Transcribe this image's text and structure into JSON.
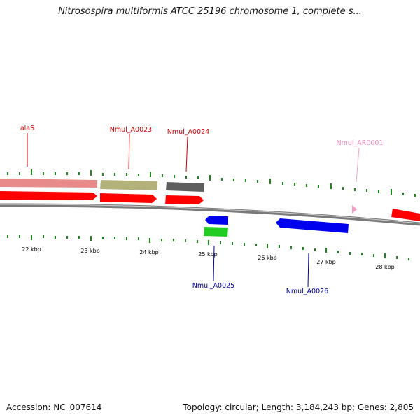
{
  "title": "Nitrosospira multiformis ATCC 25196 chromosome 1, complete s...",
  "footer": {
    "accession": "Accession: NC_007614",
    "summary": "Topology: circular; Length: 3,184,243 bp; Genes: 2,805"
  },
  "colors": {
    "backbone": "#7a7a7a",
    "tick": "#1b8a1b",
    "gene_red": "#ff0000",
    "gene_pink": "#e88a8a",
    "gene_olive": "#b3b27a",
    "gene_gray": "#5e5e5e",
    "gene_blue": "#0000ee",
    "gene_green": "#22cc22",
    "gene_lightpink": "#f29ec6",
    "label_red": "#cc0000",
    "label_blue": "#0000aa",
    "label_pink": "#ee88bb"
  },
  "scale_labels": [
    "22 kbp",
    "23 kbp",
    "24 kbp",
    "25 kbp",
    "26 kbp",
    "27 kbp",
    "28 kbp"
  ],
  "gene_labels": [
    {
      "id": "alaS",
      "text": "alaS",
      "strand": "plus",
      "color": "label_red"
    },
    {
      "id": "Nmul_A0023",
      "text": "Nmul_A0023",
      "strand": "plus",
      "color": "label_red"
    },
    {
      "id": "Nmul_A0024",
      "text": "Nmul_A0024",
      "strand": "plus",
      "color": "label_red"
    },
    {
      "id": "Nmul_AR0001",
      "text": "Nmul_AR0001",
      "strand": "plus",
      "color": "label_pink"
    },
    {
      "id": "Nmul_A0025",
      "text": "Nmul_A0025",
      "strand": "minus",
      "color": "label_blue"
    },
    {
      "id": "Nmul_A0026",
      "text": "Nmul_A0026",
      "strand": "minus",
      "color": "label_blue"
    }
  ]
}
